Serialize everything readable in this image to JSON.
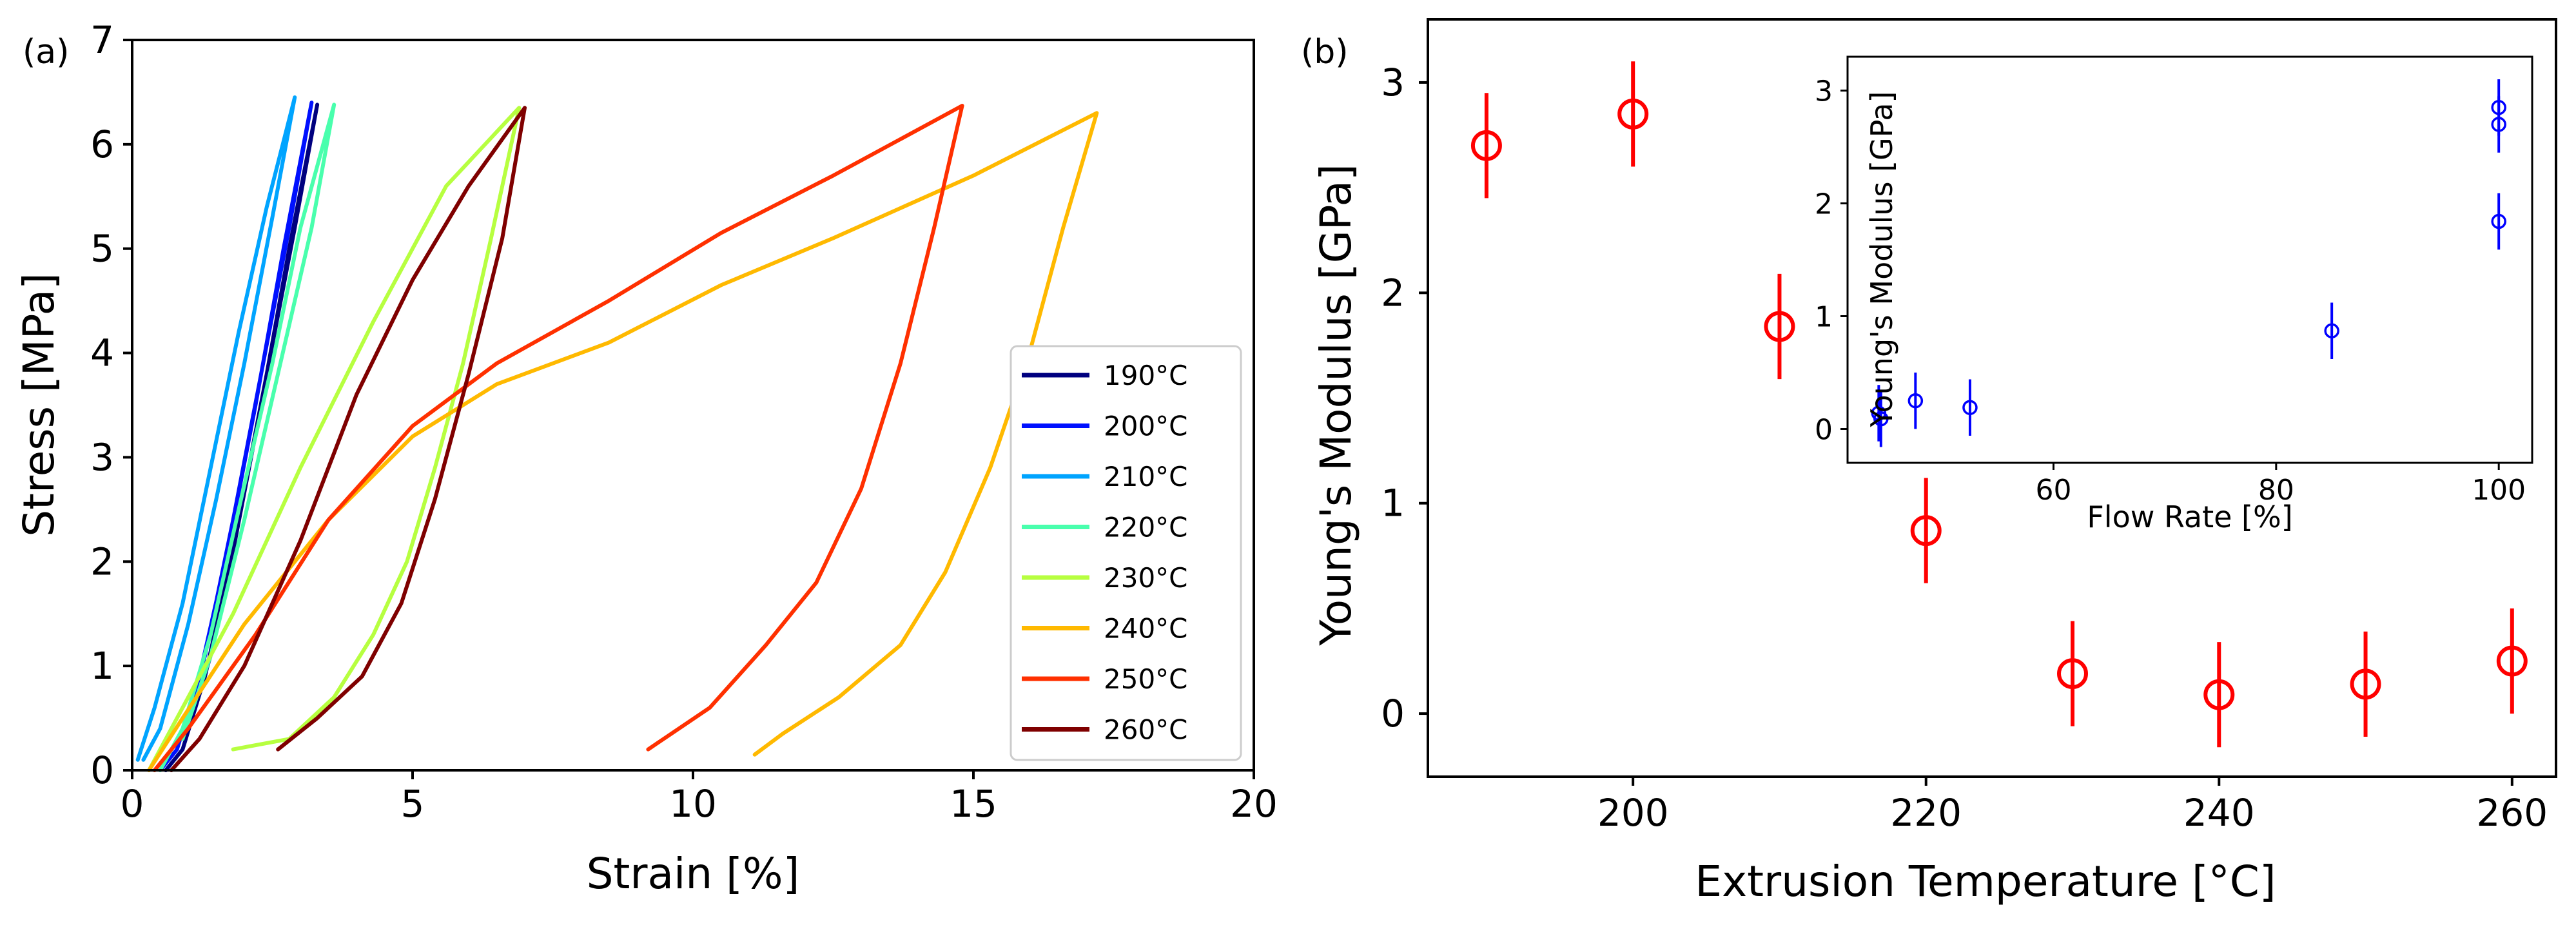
{
  "chart_data": [
    {
      "panel": "(a)",
      "type": "line",
      "xlabel": "Strain [%]",
      "ylabel": "Stress [MPa]",
      "xlim": [
        0,
        20
      ],
      "ylim": [
        0,
        7
      ],
      "xticks": [
        0,
        5,
        10,
        15,
        20
      ],
      "yticks": [
        0,
        1,
        2,
        3,
        4,
        5,
        6,
        7
      ],
      "grid": false,
      "legend_position": "lower-right",
      "series": [
        {
          "name": "190°C",
          "color": "#00007f",
          "load": [
            [
              0.6,
              0
            ],
            [
              0.9,
              0.2
            ],
            [
              1.3,
              0.9
            ],
            [
              1.8,
              2.1
            ],
            [
              2.3,
              3.5
            ],
            [
              2.8,
              5.0
            ],
            [
              3.3,
              6.38
            ]
          ],
          "unload": [
            [
              3.3,
              6.38
            ],
            [
              2.9,
              5.2
            ],
            [
              2.4,
              3.8
            ],
            [
              1.9,
              2.4
            ],
            [
              1.4,
              1.1
            ],
            [
              0.9,
              0.2
            ]
          ]
        },
        {
          "name": "200°C",
          "color": "#0010ff",
          "load": [
            [
              0.5,
              0
            ],
            [
              0.8,
              0.2
            ],
            [
              1.2,
              0.9
            ],
            [
              1.7,
              2.1
            ],
            [
              2.2,
              3.5
            ],
            [
              2.7,
              5.0
            ],
            [
              3.2,
              6.4
            ]
          ],
          "unload": [
            [
              3.2,
              6.4
            ],
            [
              2.8,
              5.2
            ],
            [
              2.3,
              3.8
            ],
            [
              1.8,
              2.4
            ],
            [
              1.3,
              1.1
            ],
            [
              0.8,
              0.2
            ]
          ]
        },
        {
          "name": "210°C",
          "color": "#00a4ff",
          "load": [
            [
              0.1,
              0.1
            ],
            [
              0.4,
              0.6
            ],
            [
              0.9,
              1.6
            ],
            [
              1.4,
              2.9
            ],
            [
              1.9,
              4.2
            ],
            [
              2.4,
              5.4
            ],
            [
              2.9,
              6.45
            ]
          ],
          "unload": [
            [
              2.9,
              6.45
            ],
            [
              2.5,
              5.3
            ],
            [
              2.0,
              3.9
            ],
            [
              1.5,
              2.6
            ],
            [
              1.0,
              1.4
            ],
            [
              0.5,
              0.4
            ],
            [
              0.2,
              0.1
            ]
          ]
        },
        {
          "name": "220°C",
          "color": "#49ffad",
          "load": [
            [
              0.5,
              0
            ],
            [
              0.9,
              0.4
            ],
            [
              1.4,
              1.3
            ],
            [
              1.9,
              2.5
            ],
            [
              2.5,
              3.9
            ],
            [
              3.0,
              5.2
            ],
            [
              3.6,
              6.38
            ]
          ],
          "unload": [
            [
              3.6,
              6.38
            ],
            [
              3.2,
              5.2
            ],
            [
              2.6,
              3.8
            ],
            [
              2.0,
              2.4
            ],
            [
              1.4,
              1.1
            ],
            [
              0.9,
              0.3
            ]
          ]
        },
        {
          "name": "230°C",
          "color": "#b7ff40",
          "load": [
            [
              0.3,
              0
            ],
            [
              0.8,
              0.5
            ],
            [
              1.8,
              1.5
            ],
            [
              3.0,
              2.9
            ],
            [
              4.3,
              4.3
            ],
            [
              5.6,
              5.6
            ],
            [
              6.9,
              6.35
            ]
          ],
          "unload": [
            [
              6.9,
              6.35
            ],
            [
              6.4,
              5.1
            ],
            [
              5.9,
              3.9
            ],
            [
              5.4,
              2.9
            ],
            [
              4.9,
              2.0
            ],
            [
              4.3,
              1.3
            ],
            [
              3.6,
              0.7
            ],
            [
              2.8,
              0.3
            ],
            [
              1.8,
              0.2
            ]
          ]
        },
        {
          "name": "240°C",
          "color": "#ffb900",
          "load": [
            [
              0.3,
              0
            ],
            [
              0.9,
              0.5
            ],
            [
              2.0,
              1.4
            ],
            [
              3.5,
              2.4
            ],
            [
              5.0,
              3.2
            ],
            [
              6.5,
              3.7
            ],
            [
              8.5,
              4.1
            ],
            [
              10.5,
              4.65
            ],
            [
              12.5,
              5.1
            ],
            [
              15.0,
              5.7
            ],
            [
              17.2,
              6.3
            ]
          ],
          "unload": [
            [
              17.2,
              6.3
            ],
            [
              16.6,
              5.2
            ],
            [
              16.0,
              4.0
            ],
            [
              15.3,
              2.9
            ],
            [
              14.5,
              1.9
            ],
            [
              13.7,
              1.2
            ],
            [
              12.6,
              0.7
            ],
            [
              11.6,
              0.35
            ],
            [
              11.1,
              0.15
            ]
          ]
        },
        {
          "name": "250°C",
          "color": "#ff3000",
          "load": [
            [
              0.4,
              0
            ],
            [
              1.0,
              0.4
            ],
            [
              2.2,
              1.3
            ],
            [
              3.5,
              2.4
            ],
            [
              5.0,
              3.3
            ],
            [
              6.5,
              3.9
            ],
            [
              8.5,
              4.5
            ],
            [
              10.5,
              5.15
            ],
            [
              12.5,
              5.7
            ],
            [
              14.8,
              6.37
            ]
          ],
          "unload": [
            [
              14.8,
              6.37
            ],
            [
              14.3,
              5.2
            ],
            [
              13.7,
              3.9
            ],
            [
              13.0,
              2.7
            ],
            [
              12.2,
              1.8
            ],
            [
              11.3,
              1.2
            ],
            [
              10.3,
              0.6
            ],
            [
              9.2,
              0.2
            ]
          ]
        },
        {
          "name": "260°C",
          "color": "#7f0000",
          "load": [
            [
              0.7,
              0
            ],
            [
              1.2,
              0.3
            ],
            [
              2.0,
              1.0
            ],
            [
              3.0,
              2.2
            ],
            [
              4.0,
              3.6
            ],
            [
              5.0,
              4.7
            ],
            [
              6.0,
              5.6
            ],
            [
              7.0,
              6.35
            ]
          ],
          "unload": [
            [
              7.0,
              6.35
            ],
            [
              6.6,
              5.1
            ],
            [
              6.0,
              3.8
            ],
            [
              5.4,
              2.6
            ],
            [
              4.8,
              1.6
            ],
            [
              4.1,
              0.9
            ],
            [
              3.3,
              0.5
            ],
            [
              2.6,
              0.2
            ]
          ]
        }
      ]
    },
    {
      "panel": "(b)",
      "type": "scatter",
      "xlabel": "Extrusion Temperature [°C]",
      "ylabel": "Young's Modulus [GPa]",
      "xlim": [
        186,
        263
      ],
      "ylim": [
        -0.3,
        3.3
      ],
      "xticks": [
        200,
        220,
        240,
        260
      ],
      "yticks": [
        0,
        1,
        2,
        3
      ],
      "marker_color": "#ff0000",
      "points": [
        {
          "x": 190,
          "y": 2.7,
          "err": 0.25
        },
        {
          "x": 200,
          "y": 2.85,
          "err": 0.25
        },
        {
          "x": 210,
          "y": 1.84,
          "err": 0.25
        },
        {
          "x": 220,
          "y": 0.87,
          "err": 0.25
        },
        {
          "x": 230,
          "y": 0.19,
          "err": 0.25
        },
        {
          "x": 240,
          "y": 0.09,
          "err": 0.25
        },
        {
          "x": 250,
          "y": 0.14,
          "err": 0.25
        },
        {
          "x": 260,
          "y": 0.25,
          "err": 0.25
        }
      ]
    },
    {
      "panel": "(b) inset",
      "type": "scatter",
      "xlabel": "Flow Rate [%]",
      "ylabel": "Young's Modulus [GPa]",
      "xlim": [
        41.5,
        103
      ],
      "ylim": [
        -0.3,
        3.3
      ],
      "xticks": [
        60,
        80,
        100
      ],
      "yticks": [
        0,
        1,
        2,
        3
      ],
      "marker_color": "#0000ff",
      "points": [
        {
          "x": 44.3,
          "y": 0.14,
          "err": 0.25
        },
        {
          "x": 44.5,
          "y": 0.09,
          "err": 0.25
        },
        {
          "x": 47.6,
          "y": 0.25,
          "err": 0.25
        },
        {
          "x": 52.5,
          "y": 0.19,
          "err": 0.25
        },
        {
          "x": 85.0,
          "y": 0.87,
          "err": 0.25
        },
        {
          "x": 100.0,
          "y": 1.84,
          "err": 0.25
        },
        {
          "x": 100.0,
          "y": 2.7,
          "err": 0.25
        },
        {
          "x": 100.0,
          "y": 2.85,
          "err": 0.25
        }
      ]
    }
  ]
}
